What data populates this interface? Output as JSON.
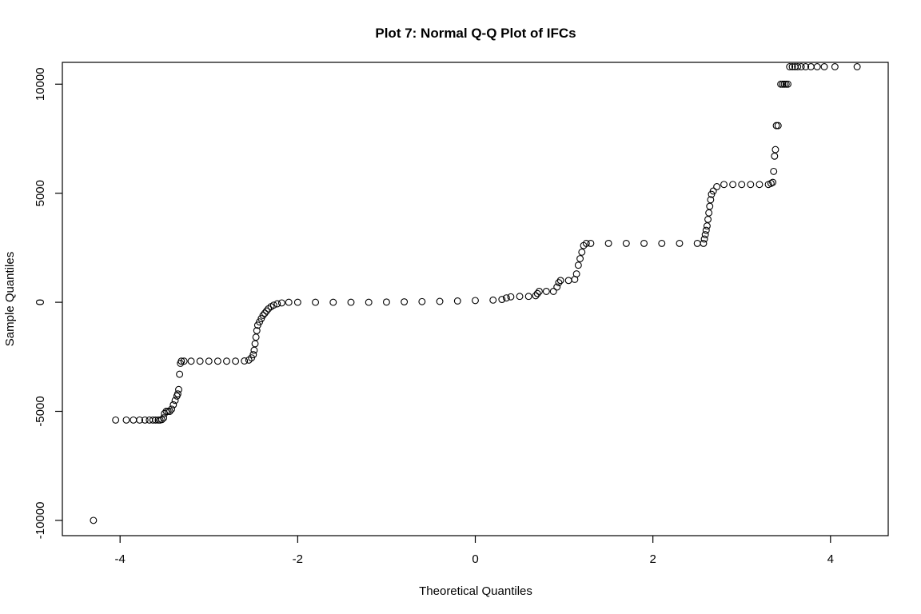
{
  "chart_data": {
    "type": "scatter",
    "title": "Plot 7: Normal Q-Q Plot of IFCs",
    "xlabel": "Theoretical Quantiles",
    "ylabel": "Sample Quantiles",
    "xlim": [
      -4.65,
      4.65
    ],
    "ylim": [
      -10700,
      11000
    ],
    "xticks": [
      -4,
      -2,
      0,
      2,
      4
    ],
    "xtick_labels": [
      "-4",
      "-2",
      "0",
      "2",
      "4"
    ],
    "yticks": [
      -10000,
      -5000,
      0,
      5000,
      10000
    ],
    "ytick_labels": [
      "-10000",
      "-5000",
      "0",
      "5000",
      "10000"
    ],
    "grid": false,
    "legend": "none",
    "series": [
      {
        "points": [
          [
            -4.3,
            -10000
          ],
          [
            -4.05,
            -5400
          ],
          [
            -3.93,
            -5400
          ],
          [
            -3.85,
            -5400
          ],
          [
            -3.78,
            -5400
          ],
          [
            -3.72,
            -5400
          ],
          [
            -3.67,
            -5400
          ],
          [
            -3.63,
            -5400
          ],
          [
            -3.6,
            -5400
          ],
          [
            -3.57,
            -5400
          ],
          [
            -3.55,
            -5400
          ],
          [
            -3.53,
            -5380
          ],
          [
            -3.51,
            -5300
          ],
          [
            -3.5,
            -5100
          ],
          [
            -3.48,
            -5000
          ],
          [
            -3.46,
            -5000
          ],
          [
            -3.44,
            -5000
          ],
          [
            -3.42,
            -4900
          ],
          [
            -3.4,
            -4700
          ],
          [
            -3.38,
            -4500
          ],
          [
            -3.36,
            -4300
          ],
          [
            -3.35,
            -4200
          ],
          [
            -3.34,
            -4000
          ],
          [
            -3.33,
            -3300
          ],
          [
            -3.32,
            -2800
          ],
          [
            -3.31,
            -2700
          ],
          [
            -3.28,
            -2700
          ],
          [
            -3.2,
            -2700
          ],
          [
            -3.1,
            -2700
          ],
          [
            -3.0,
            -2700
          ],
          [
            -2.9,
            -2700
          ],
          [
            -2.8,
            -2700
          ],
          [
            -2.7,
            -2700
          ],
          [
            -2.6,
            -2690
          ],
          [
            -2.55,
            -2650
          ],
          [
            -2.52,
            -2550
          ],
          [
            -2.5,
            -2400
          ],
          [
            -2.49,
            -2200
          ],
          [
            -2.48,
            -1900
          ],
          [
            -2.47,
            -1600
          ],
          [
            -2.46,
            -1300
          ],
          [
            -2.45,
            -1050
          ],
          [
            -2.43,
            -900
          ],
          [
            -2.41,
            -750
          ],
          [
            -2.39,
            -600
          ],
          [
            -2.37,
            -500
          ],
          [
            -2.35,
            -400
          ],
          [
            -2.33,
            -300
          ],
          [
            -2.3,
            -200
          ],
          [
            -2.27,
            -130
          ],
          [
            -2.23,
            -70
          ],
          [
            -2.18,
            -30
          ],
          [
            -2.1,
            0
          ],
          [
            -2.0,
            0
          ],
          [
            -1.8,
            0
          ],
          [
            -1.6,
            0
          ],
          [
            -1.4,
            0
          ],
          [
            -1.2,
            0
          ],
          [
            -1.0,
            10
          ],
          [
            -0.8,
            20
          ],
          [
            -0.6,
            30
          ],
          [
            -0.4,
            40
          ],
          [
            -0.2,
            60
          ],
          [
            0.0,
            80
          ],
          [
            0.2,
            100
          ],
          [
            0.3,
            130
          ],
          [
            0.35,
            200
          ],
          [
            0.4,
            250
          ],
          [
            0.5,
            270
          ],
          [
            0.6,
            270
          ],
          [
            0.68,
            300
          ],
          [
            0.7,
            400
          ],
          [
            0.72,
            500
          ],
          [
            0.8,
            500
          ],
          [
            0.88,
            500
          ],
          [
            0.92,
            700
          ],
          [
            0.94,
            900
          ],
          [
            0.96,
            1000
          ],
          [
            1.05,
            1000
          ],
          [
            1.12,
            1050
          ],
          [
            1.14,
            1300
          ],
          [
            1.16,
            1700
          ],
          [
            1.18,
            2000
          ],
          [
            1.2,
            2300
          ],
          [
            1.22,
            2600
          ],
          [
            1.25,
            2700
          ],
          [
            1.3,
            2700
          ],
          [
            1.5,
            2700
          ],
          [
            1.7,
            2700
          ],
          [
            1.9,
            2700
          ],
          [
            2.1,
            2700
          ],
          [
            2.3,
            2700
          ],
          [
            2.5,
            2700
          ],
          [
            2.57,
            2700
          ],
          [
            2.58,
            2900
          ],
          [
            2.59,
            3100
          ],
          [
            2.6,
            3300
          ],
          [
            2.61,
            3500
          ],
          [
            2.62,
            3800
          ],
          [
            2.63,
            4100
          ],
          [
            2.64,
            4400
          ],
          [
            2.65,
            4700
          ],
          [
            2.66,
            4950
          ],
          [
            2.68,
            5100
          ],
          [
            2.72,
            5300
          ],
          [
            2.8,
            5400
          ],
          [
            2.9,
            5400
          ],
          [
            3.0,
            5400
          ],
          [
            3.1,
            5400
          ],
          [
            3.2,
            5400
          ],
          [
            3.3,
            5400
          ],
          [
            3.33,
            5450
          ],
          [
            3.35,
            5500
          ],
          [
            3.36,
            6000
          ],
          [
            3.37,
            6700
          ],
          [
            3.38,
            7000
          ],
          [
            3.39,
            8100
          ],
          [
            3.41,
            8100
          ],
          [
            3.44,
            10000
          ],
          [
            3.46,
            10000
          ],
          [
            3.48,
            10000
          ],
          [
            3.5,
            10000
          ],
          [
            3.52,
            10000
          ],
          [
            3.54,
            10800
          ],
          [
            3.57,
            10800
          ],
          [
            3.6,
            10800
          ],
          [
            3.63,
            10800
          ],
          [
            3.67,
            10800
          ],
          [
            3.72,
            10800
          ],
          [
            3.78,
            10800
          ],
          [
            3.85,
            10800
          ],
          [
            3.93,
            10800
          ],
          [
            4.05,
            10800
          ],
          [
            4.3,
            10800
          ]
        ]
      }
    ]
  }
}
